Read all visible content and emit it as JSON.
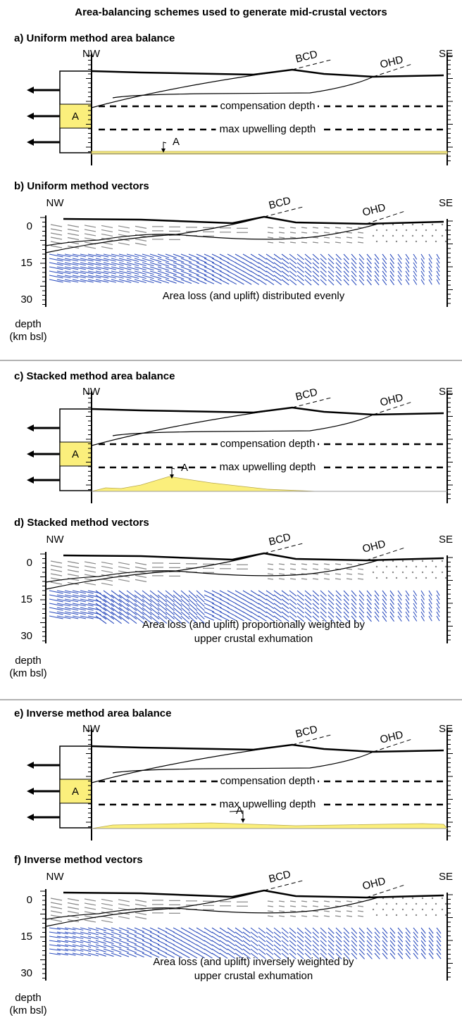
{
  "title": "Area-balancing schemes used to generate mid-crustal vectors",
  "panels": [
    {
      "kind": "balance",
      "title": "a) Uniform method area balance",
      "nw": "NW",
      "se": "SE",
      "bcd": "BCD",
      "ohd": "OHD",
      "box_label": "A",
      "compensation": "compensation depth",
      "upwelling": "max upwelling depth",
      "area_label": "A"
    },
    {
      "kind": "vectors",
      "title": "b) Uniform method vectors",
      "nw": "NW",
      "se": "SE",
      "bcd": "BCD",
      "ohd": "OHD",
      "depth_ticks": [
        0,
        15,
        30
      ],
      "caption": [
        "Area loss (and uplift) distributed evenly"
      ],
      "depth_label": [
        "depth",
        "(km bsl)"
      ]
    },
    {
      "kind": "balance",
      "title": "c) Stacked method area balance",
      "nw": "NW",
      "se": "SE",
      "bcd": "BCD",
      "ohd": "OHD",
      "box_label": "A",
      "compensation": "compensation depth",
      "upwelling": "max upwelling depth",
      "area_label": "A"
    },
    {
      "kind": "vectors",
      "title": "d) Stacked method vectors",
      "nw": "NW",
      "se": "SE",
      "bcd": "BCD",
      "ohd": "OHD",
      "depth_ticks": [
        0,
        15,
        30
      ],
      "caption": [
        "Area loss (and uplift) proportionally weighted by",
        "upper crustal exhumation"
      ],
      "depth_label": [
        "depth",
        "(km bsl)"
      ]
    },
    {
      "kind": "balance",
      "title": "e) Inverse method area balance",
      "nw": "NW",
      "se": "SE",
      "bcd": "BCD",
      "ohd": "OHD",
      "box_label": "A",
      "compensation": "compensation depth",
      "upwelling": "max upwelling depth",
      "area_label": "A"
    },
    {
      "kind": "vectors",
      "title": "f) Inverse method vectors",
      "nw": "NW",
      "se": "SE",
      "bcd": "BCD",
      "ohd": "OHD",
      "depth_ticks": [
        0,
        15,
        30
      ],
      "caption": [
        "Area loss (and uplift) inversely weighted by",
        "upper crustal exhumation"
      ],
      "depth_label": [
        "depth",
        "(km bsl)"
      ]
    }
  ]
}
